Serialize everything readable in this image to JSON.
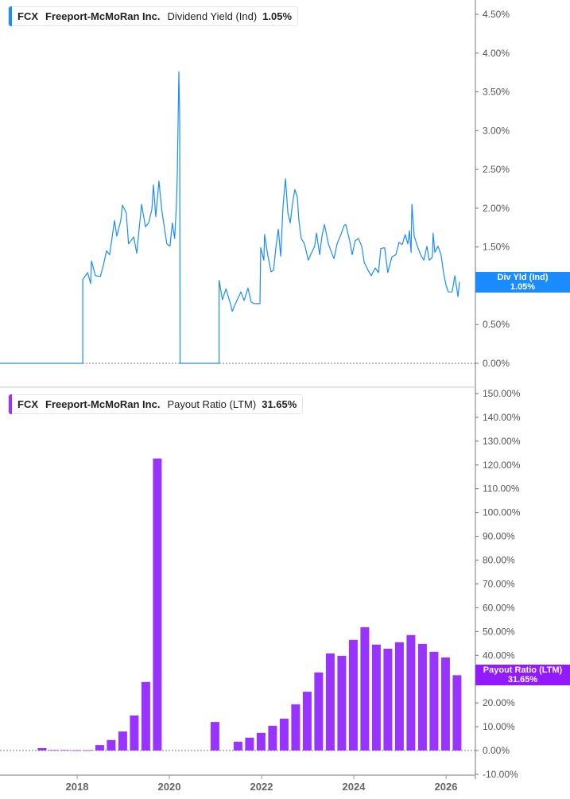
{
  "colors": {
    "yield": "#1a8cff",
    "payout": "#9933ff",
    "axis": "#bbbbbb",
    "text": "#555555"
  },
  "legends": [
    {
      "ticker": "FCX",
      "company": "Freeport-McMoRan Inc.",
      "metric": "Dividend Yield (Ind)",
      "value": "1.05%"
    },
    {
      "ticker": "FCX",
      "company": "Freeport-McMoRan Inc.",
      "metric": "Payout Ratio (LTM)",
      "value": "31.65%"
    }
  ],
  "tags": [
    {
      "label": "Div Yld (Ind)",
      "value": "1.05%"
    },
    {
      "label": "Payout Ratio (LTM)",
      "value": "31.65%"
    }
  ],
  "chart_data": [
    {
      "type": "line",
      "title": "",
      "series": [
        {
          "name": "Dividend Yield (Ind)",
          "unit": "%",
          "points": [
            [
              "2016-05-01",
              0
            ],
            [
              "2018-02-15",
              0
            ],
            [
              "2018-02-15",
              1.08
            ],
            [
              "2018-03-23",
              1.17
            ],
            [
              "2018-04-17",
              1.03
            ],
            [
              "2018-04-23",
              1.32
            ],
            [
              "2018-05-25",
              1.13
            ],
            [
              "2018-07-02",
              1.12
            ],
            [
              "2018-07-27",
              1.27
            ],
            [
              "2018-08-21",
              1.45
            ],
            [
              "2018-09-15",
              1.4
            ],
            [
              "2018-10-23",
              1.84
            ],
            [
              "2018-11-11",
              1.64
            ],
            [
              "2018-12-12",
              1.84
            ],
            [
              "2018-12-25",
              2.04
            ],
            [
              "2019-01-25",
              1.94
            ],
            [
              "2019-02-13",
              1.54
            ],
            [
              "2019-03-23",
              1.63
            ],
            [
              "2019-04-17",
              1.42
            ],
            [
              "2019-05-25",
              2.05
            ],
            [
              "2019-06-25",
              1.76
            ],
            [
              "2019-07-20",
              1.81
            ],
            [
              "2019-08-15",
              1.99
            ],
            [
              "2019-08-27",
              2.3
            ],
            [
              "2019-09-15",
              1.89
            ],
            [
              "2019-10-10",
              2.35
            ],
            [
              "2019-11-04",
              1.95
            ],
            [
              "2019-12-12",
              1.54
            ],
            [
              "2020-01-06",
              1.51
            ],
            [
              "2020-01-25",
              1.81
            ],
            [
              "2020-02-13",
              1.61
            ],
            [
              "2020-02-26",
              2.02
            ],
            [
              "2020-03-03",
              2.43
            ],
            [
              "2020-03-16",
              3.76
            ],
            [
              "2020-03-22",
              3.18
            ],
            [
              "2020-03-25",
              0
            ],
            [
              "2021-01-30",
              0
            ],
            [
              "2021-01-30",
              1.07
            ],
            [
              "2021-02-26",
              0.82
            ],
            [
              "2021-03-23",
              0.96
            ],
            [
              "2021-04-30",
              0.76
            ],
            [
              "2021-05-12",
              0.67
            ],
            [
              "2021-06-19",
              0.81
            ],
            [
              "2021-07-20",
              0.92
            ],
            [
              "2021-08-15",
              0.81
            ],
            [
              "2021-09-15",
              0.97
            ],
            [
              "2021-10-10",
              0.79
            ],
            [
              "2021-11-04",
              0.77
            ],
            [
              "2021-12-19",
              0.77
            ],
            [
              "2021-12-25",
              1.49
            ],
            [
              "2022-01-19",
              1.33
            ],
            [
              "2022-01-25",
              1.66
            ],
            [
              "2022-02-19",
              1.4
            ],
            [
              "2022-03-16",
              1.18
            ],
            [
              "2022-04-05",
              1.2
            ],
            [
              "2022-04-23",
              1.49
            ],
            [
              "2022-05-12",
              1.73
            ],
            [
              "2022-05-31",
              1.38
            ],
            [
              "2022-06-19",
              2.02
            ],
            [
              "2022-07-08",
              2.38
            ],
            [
              "2022-07-27",
              1.94
            ],
            [
              "2022-08-15",
              1.81
            ],
            [
              "2022-09-02",
              2.05
            ],
            [
              "2022-09-21",
              2.24
            ],
            [
              "2022-10-10",
              2.15
            ],
            [
              "2022-10-23",
              1.84
            ],
            [
              "2022-11-11",
              1.61
            ],
            [
              "2022-12-06",
              1.54
            ],
            [
              "2023-01-06",
              1.33
            ],
            [
              "2023-01-25",
              1.4
            ],
            [
              "2023-02-26",
              1.51
            ],
            [
              "2023-03-10",
              1.68
            ],
            [
              "2023-04-05",
              1.4
            ],
            [
              "2023-04-23",
              1.64
            ],
            [
              "2023-05-12",
              1.79
            ],
            [
              "2023-06-13",
              1.54
            ],
            [
              "2023-07-14",
              1.4
            ],
            [
              "2023-07-27",
              1.35
            ],
            [
              "2023-08-21",
              1.54
            ],
            [
              "2023-09-21",
              1.66
            ],
            [
              "2023-10-16",
              1.78
            ],
            [
              "2023-10-29",
              1.79
            ],
            [
              "2023-11-30",
              1.58
            ],
            [
              "2023-12-19",
              1.4
            ],
            [
              "2024-01-12",
              1.58
            ],
            [
              "2024-02-07",
              1.61
            ],
            [
              "2024-03-03",
              1.51
            ],
            [
              "2024-03-23",
              1.3
            ],
            [
              "2024-04-23",
              1.2
            ],
            [
              "2024-05-18",
              1.13
            ],
            [
              "2024-06-19",
              1.23
            ],
            [
              "2024-07-14",
              1.17
            ],
            [
              "2024-08-02",
              1.48
            ],
            [
              "2024-09-02",
              1.49
            ],
            [
              "2024-09-27",
              1.17
            ],
            [
              "2024-10-29",
              1.37
            ],
            [
              "2024-11-30",
              1.4
            ],
            [
              "2024-12-25",
              1.56
            ],
            [
              "2025-01-19",
              1.53
            ],
            [
              "2025-02-13",
              1.66
            ],
            [
              "2025-03-03",
              1.54
            ],
            [
              "2025-03-16",
              1.71
            ],
            [
              "2025-03-29",
              1.43
            ],
            [
              "2025-04-05",
              2.05
            ],
            [
              "2025-04-23",
              1.64
            ],
            [
              "2025-05-18",
              1.51
            ],
            [
              "2025-06-13",
              1.4
            ],
            [
              "2025-07-08",
              1.33
            ],
            [
              "2025-08-02",
              1.51
            ],
            [
              "2025-08-21",
              1.33
            ],
            [
              "2025-09-15",
              1.37
            ],
            [
              "2025-09-21",
              1.68
            ],
            [
              "2025-10-04",
              1.43
            ],
            [
              "2025-10-29",
              1.51
            ],
            [
              "2025-11-23",
              1.4
            ],
            [
              "2025-12-12",
              1.17
            ],
            [
              "2026-01-01",
              1.01
            ],
            [
              "2026-01-19",
              0.92
            ],
            [
              "2026-02-19",
              0.92
            ],
            [
              "2026-03-10",
              1.13
            ],
            [
              "2026-04-05",
              0.86
            ],
            [
              "2026-04-17",
              1.05
            ]
          ]
        }
      ],
      "ylim": [
        0,
        4.5
      ],
      "yticks": [
        "0.00%",
        "0.50%",
        "1.00%",
        "1.50%",
        "2.00%",
        "2.50%",
        "3.00%",
        "3.50%",
        "4.00%",
        "4.50%"
      ],
      "ytick_values": [
        0,
        0.5,
        1,
        1.5,
        2,
        2.5,
        3,
        3.5,
        4,
        4.5
      ],
      "y_axis_side": "right",
      "zero_line": "dotted"
    },
    {
      "type": "bar",
      "title": "",
      "series": [
        {
          "name": "Payout Ratio (LTM)",
          "unit": "%",
          "values": [
            [
              "2017 Q1",
              1.0
            ],
            [
              "2017 Q2",
              0.2
            ],
            [
              "2017 Q3",
              0.2
            ],
            [
              "2017 Q4",
              0.1
            ],
            [
              "2018 Q1",
              0.1
            ],
            [
              "2018 Q2",
              2.3
            ],
            [
              "2018 Q3",
              4.4
            ],
            [
              "2018 Q4",
              8.0
            ],
            [
              "2019 Q1",
              14.7
            ],
            [
              "2019 Q2",
              28.8
            ],
            [
              "2019 Q3",
              122.7
            ],
            [
              "2020 Q4",
              12.0
            ],
            [
              "2021 Q2",
              3.7
            ],
            [
              "2021 Q3",
              5.4
            ],
            [
              "2021 Q4",
              7.4
            ],
            [
              "2022 Q1",
              10.4
            ],
            [
              "2022 Q2",
              13.4
            ],
            [
              "2022 Q3",
              19.4
            ],
            [
              "2022 Q4",
              24.7
            ],
            [
              "2023 Q1",
              32.8
            ],
            [
              "2023 Q2",
              40.8
            ],
            [
              "2023 Q3",
              39.8
            ],
            [
              "2023 Q4",
              46.5
            ],
            [
              "2024 Q1",
              51.8
            ],
            [
              "2024 Q2",
              44.5
            ],
            [
              "2024 Q3",
              42.8
            ],
            [
              "2024 Q4",
              45.5
            ],
            [
              "2025 Q1",
              48.5
            ],
            [
              "2025 Q2",
              44.8
            ],
            [
              "2025 Q3",
              41.5
            ],
            [
              "2025 Q4",
              39.1
            ],
            [
              "2026 Q1",
              31.65
            ]
          ]
        }
      ],
      "ylim": [
        -10,
        150
      ],
      "yticks": [
        "-10.00%",
        "0.00%",
        "10.00%",
        "20.00%",
        "30.00%",
        "40.00%",
        "50.00%",
        "60.00%",
        "70.00%",
        "80.00%",
        "90.00%",
        "100.00%",
        "110.00%",
        "120.00%",
        "130.00%",
        "140.00%",
        "150.00%"
      ],
      "ytick_values": [
        -10,
        0,
        10,
        20,
        30,
        40,
        50,
        60,
        70,
        80,
        90,
        100,
        110,
        120,
        130,
        140,
        150
      ],
      "y_axis_side": "right",
      "zero_line": "dotted"
    }
  ],
  "xaxis": {
    "ticks": [
      "2018",
      "2020",
      "2022",
      "2024",
      "2026"
    ],
    "tick_values": [
      2018,
      2020,
      2022,
      2024,
      2026
    ]
  }
}
